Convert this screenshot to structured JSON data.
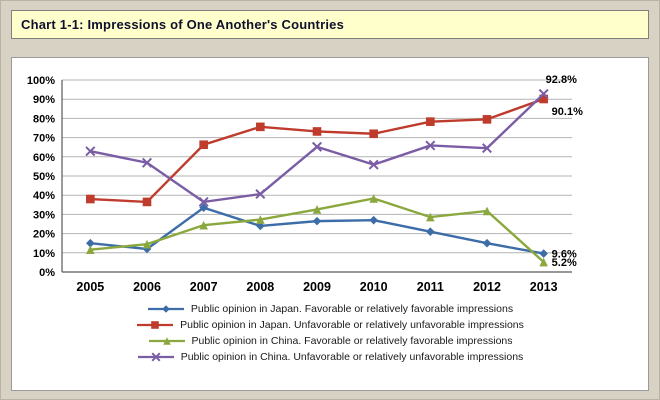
{
  "header": {
    "title": "Chart 1-1: Impressions of One Another's Countries"
  },
  "chart_data": {
    "type": "line",
    "x": [
      "2005",
      "2006",
      "2007",
      "2008",
      "2009",
      "2010",
      "2011",
      "2012",
      "2013"
    ],
    "y_ticks": [
      "100%",
      "90%",
      "80%",
      "70%",
      "60%",
      "50%",
      "40%",
      "30%",
      "20%",
      "10%",
      "0%"
    ],
    "ylim": [
      0,
      100
    ],
    "grid": true,
    "legend_position": "bottom",
    "series": [
      {
        "name": "Public opinion in Japan. Favorable or relatively favorable impressions",
        "color": "#3c6da8",
        "marker": "diamond",
        "values": [
          15,
          12,
          33.5,
          24,
          26.5,
          27,
          21,
          15,
          9.6
        ]
      },
      {
        "name": "Public opinion in Japan. Unfavorable or relatively unfavorable impressions",
        "color": "#bf3b2c",
        "marker": "square",
        "values": [
          38,
          36.5,
          66.3,
          75.6,
          73.2,
          72,
          78.3,
          79.5,
          90.1
        ]
      },
      {
        "name": "Public opinion in China. Favorable or relatively favorable impressions",
        "color": "#8aa83d",
        "marker": "triangle",
        "values": [
          11.6,
          14.5,
          24.4,
          27.3,
          32.6,
          38.3,
          28.6,
          31.8,
          5.2
        ]
      },
      {
        "name": "Public opinion in China. Unfavorable or relatively unfavorable impressions",
        "color": "#7a5da5",
        "marker": "x",
        "values": [
          62.9,
          56.9,
          36.5,
          40.6,
          65.2,
          55.9,
          65.9,
          64.5,
          92.8
        ]
      }
    ],
    "annotations": [
      {
        "text": "92.8%",
        "y": 92.8,
        "position": "above-right"
      },
      {
        "text": "90.1%",
        "y": 90.1,
        "position": "below-right"
      },
      {
        "text": "9.6%",
        "y": 9.6,
        "position": "right"
      },
      {
        "text": "5.2%",
        "y": 5.2,
        "position": "right"
      }
    ]
  }
}
